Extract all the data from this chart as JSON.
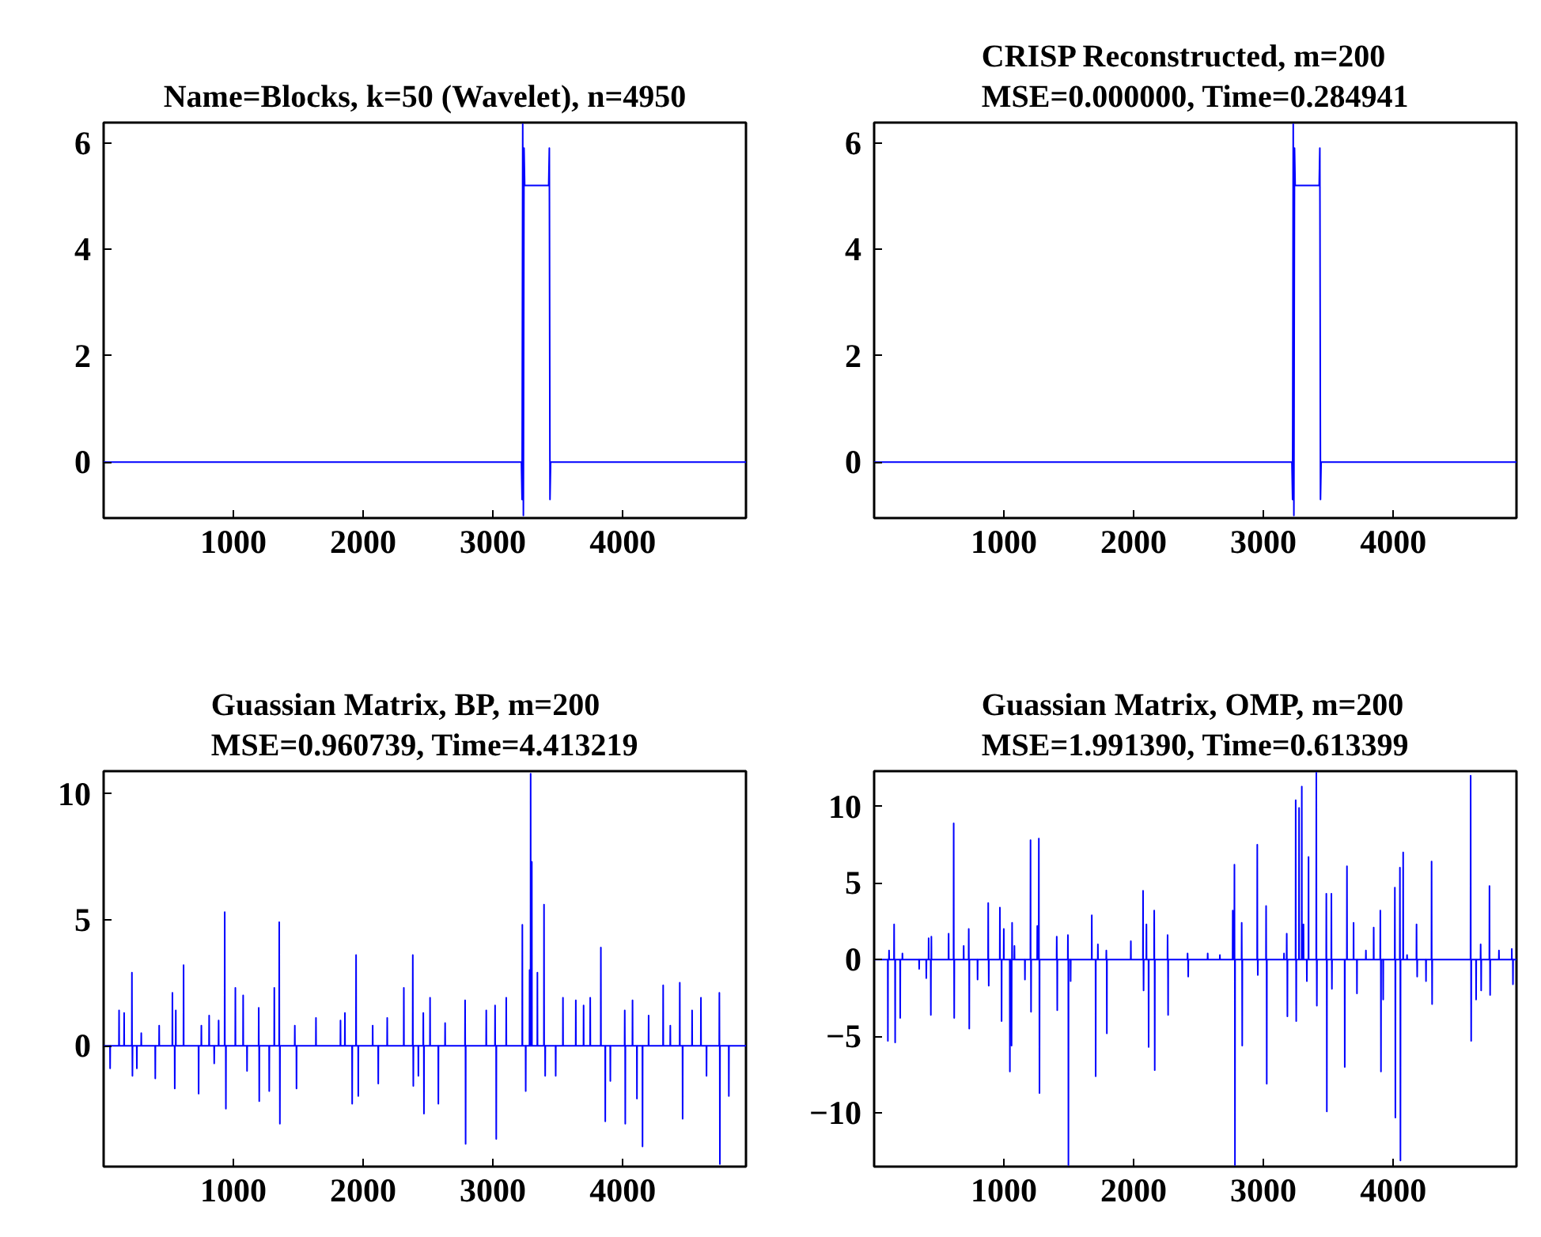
{
  "chart_data": [
    {
      "type": "line",
      "title": "Name=Blocks, k=50 (Wavelet), n=4950",
      "color": "#0000ff",
      "xlim": [
        1,
        4950
      ],
      "ylim": [
        -1.05,
        6.38
      ],
      "xticks": [
        1000,
        2000,
        3000,
        4000
      ],
      "yticks": [
        0,
        2,
        4,
        6
      ],
      "x": [
        1,
        3220,
        3225,
        3230,
        3235,
        3240,
        3245,
        3430,
        3435,
        3440,
        3445,
        4950
      ],
      "values": [
        0,
        0,
        -0.7,
        6.35,
        -1.0,
        5.9,
        5.2,
        5.2,
        5.9,
        -0.7,
        0,
        0
      ]
    },
    {
      "type": "line",
      "title": "CRISP Reconstructed, m=200",
      "subtitle": "MSE=0.000000, Time=0.284941",
      "color": "#0000ff",
      "xlim": [
        1,
        4950
      ],
      "ylim": [
        -1.05,
        6.38
      ],
      "xticks": [
        1000,
        2000,
        3000,
        4000
      ],
      "yticks": [
        0,
        2,
        4,
        6
      ],
      "x": [
        1,
        3220,
        3225,
        3230,
        3235,
        3240,
        3245,
        3430,
        3435,
        3440,
        3445,
        4950
      ],
      "values": [
        0,
        0,
        -0.7,
        6.35,
        -1.0,
        5.9,
        5.2,
        5.2,
        5.9,
        -0.7,
        0,
        0
      ]
    },
    {
      "type": "line",
      "title": "Guassian Matrix, BP, m=200",
      "subtitle": "MSE=0.960739, Time=4.413219",
      "color": "#0000ff",
      "xlim": [
        1,
        4950
      ],
      "ylim": [
        -4.8,
        10.9
      ],
      "xticks": [
        1000,
        2000,
        3000,
        4000
      ],
      "yticks": [
        0,
        5,
        10
      ],
      "x": [
        1,
        50,
        51,
        52,
        119,
        120,
        121,
        158,
        159,
        160,
        218,
        219,
        220,
        222,
        223,
        224,
        256,
        257,
        258,
        290,
        291,
        292,
        398,
        399,
        400,
        428,
        429,
        430,
        530,
        531,
        532,
        548,
        549,
        550,
        556,
        557,
        558,
        616,
        617,
        618,
        732,
        733,
        734,
        753,
        754,
        755,
        813,
        814,
        815,
        852,
        853,
        854,
        886,
        887,
        888,
        933,
        934,
        935,
        942,
        943,
        944,
        1015,
        1016,
        1017,
        1075,
        1076,
        1077,
        1105,
        1106,
        1107,
        1195,
        1196,
        1197,
        1199,
        1200,
        1201,
        1276,
        1277,
        1278,
        1315,
        1316,
        1317,
        1353,
        1354,
        1355,
        1358,
        1359,
        1360,
        1473,
        1474,
        1475,
        1486,
        1487,
        1488,
        1636,
        1637,
        1638,
        1825,
        1826,
        1827,
        1859,
        1860,
        1861,
        1915,
        1916,
        1917,
        1945,
        1946,
        1947,
        1962,
        1963,
        1964,
        2073,
        2074,
        2075,
        2116,
        2117,
        2118,
        2185,
        2186,
        2187,
        2313,
        2314,
        2315,
        2382,
        2383,
        2384,
        2386,
        2387,
        2388,
        2425,
        2426,
        2427,
        2463,
        2464,
        2465,
        2468,
        2469,
        2470,
        2515,
        2516,
        2517,
        2579,
        2580,
        2581,
        2631,
        2632,
        2633,
        2785,
        2786,
        2787,
        2789,
        2790,
        2791,
        2948,
        2949,
        2950,
        3016,
        3017,
        3018,
        3025,
        3026,
        3027,
        3102,
        3103,
        3104,
        3226,
        3227,
        3228,
        3252,
        3253,
        3254,
        3282,
        3283,
        3284,
        3290,
        3291,
        3292,
        3299,
        3300,
        3301,
        3342,
        3343,
        3344,
        3393,
        3394,
        3395,
        3402,
        3403,
        3404,
        3483,
        3484,
        3485,
        3539,
        3540,
        3541,
        3638,
        3639,
        3640,
        3698,
        3699,
        3700,
        3749,
        3750,
        3751,
        3831,
        3832,
        3833,
        3865,
        3866,
        3867,
        3904,
        3905,
        3906,
        4015,
        4016,
        4017,
        4019,
        4020,
        4021,
        4075,
        4076,
        4077,
        4109,
        4110,
        4111,
        4152,
        4153,
        4154,
        4199,
        4200,
        4201,
        4311,
        4312,
        4313,
        4366,
        4367,
        4368,
        4439,
        4440,
        4441,
        4461,
        4462,
        4463,
        4534,
        4535,
        4536,
        4602,
        4603,
        4604,
        4645,
        4646,
        4647,
        4744,
        4745,
        4746,
        4748,
        4749,
        4750,
        4817,
        4818,
        4819,
        4950
      ],
      "values": [
        0,
        0,
        -0.9,
        0,
        0,
        1.4,
        0,
        0,
        1.3,
        0,
        0,
        2.9,
        0,
        0,
        -1.2,
        0,
        0,
        -0.9,
        0,
        0,
        0.5,
        0,
        0,
        -1.3,
        0,
        0,
        0.8,
        0,
        0,
        2.1,
        0,
        0,
        -1.7,
        0,
        0,
        1.4,
        0,
        0,
        3.2,
        0,
        0,
        -1.9,
        0,
        0,
        0.8,
        0,
        0,
        1.2,
        0,
        0,
        -0.7,
        0,
        0,
        1.0,
        0,
        0,
        5.3,
        0,
        0,
        -2.5,
        0,
        0,
        2.3,
        0,
        0,
        2.0,
        0,
        0,
        -1.0,
        0,
        0,
        1.5,
        0,
        0,
        -2.2,
        0,
        0,
        -1.8,
        0,
        0,
        2.3,
        0,
        0,
        4.9,
        0,
        0,
        -3.1,
        0,
        0,
        0.8,
        0,
        0,
        -1.7,
        0,
        0,
        1.1,
        0,
        0,
        1.0,
        0,
        0,
        1.3,
        0,
        0,
        -2.3,
        0,
        0,
        3.6,
        0,
        0,
        -2.0,
        0,
        0,
        0.8,
        0,
        0,
        -1.5,
        0,
        0,
        1.1,
        0,
        0,
        2.3,
        0,
        0,
        3.6,
        0,
        0,
        -1.6,
        0,
        0,
        -1.2,
        0,
        0,
        1.3,
        0,
        0,
        -2.7,
        0,
        0,
        1.9,
        0,
        0,
        -2.3,
        0,
        0,
        0.9,
        0,
        0,
        1.8,
        0,
        0,
        -3.9,
        0,
        0,
        1.4,
        0,
        0,
        1.6,
        0,
        0,
        -3.7,
        0,
        0,
        1.9,
        0,
        0,
        4.8,
        0,
        0,
        -1.8,
        0,
        0,
        3.0,
        0,
        0,
        10.8,
        0,
        0,
        7.3,
        0,
        0,
        2.9,
        0,
        0,
        5.6,
        0,
        0,
        -1.2,
        0,
        0,
        -1.2,
        0,
        0,
        1.9,
        0,
        0,
        1.8,
        0,
        0,
        1.6,
        0,
        0,
        1.9,
        0,
        0,
        3.9,
        0,
        0,
        -3.0,
        0,
        0,
        -1.4,
        0,
        0,
        1.4,
        0,
        0,
        -3.1,
        0,
        0,
        1.8,
        0,
        0,
        -2.1,
        0,
        0,
        -4.0,
        0,
        0,
        1.2,
        0,
        0,
        2.4,
        0,
        0,
        0.8,
        0,
        0,
        2.5,
        0,
        0,
        -2.9,
        0,
        0,
        1.4,
        0,
        0,
        1.9,
        0,
        0,
        -1.2,
        0,
        0,
        2.1,
        0,
        0,
        -4.7,
        0,
        0,
        -2.0,
        0,
        0
      ]
    },
    {
      "type": "line",
      "title": "Guassian Matrix, OMP, m=200",
      "subtitle": "MSE=1.991390, Time=0.613399",
      "color": "#0000ff",
      "xlim": [
        1,
        4950
      ],
      "ylim": [
        -13.5,
        12.3
      ],
      "xticks": [
        1000,
        2000,
        3000,
        4000
      ],
      "yticks": [
        {
          "value": -10,
          "label": "−10"
        },
        {
          "value": -5,
          "label": "−5"
        },
        0,
        5,
        10
      ],
      "x": [
        1,
        106,
        107,
        108,
        115,
        116,
        117,
        154,
        155,
        156,
        162,
        163,
        164,
        201,
        202,
        203,
        218,
        219,
        220,
        347,
        348,
        349,
        402,
        403,
        404,
        420,
        421,
        422,
        437,
        438,
        439,
        441,
        442,
        443,
        574,
        575,
        576,
        613,
        614,
        615,
        617,
        618,
        619,
        690,
        691,
        692,
        729,
        730,
        731,
        733,
        734,
        735,
        797,
        798,
        799,
        879,
        880,
        881,
        883,
        884,
        885,
        969,
        970,
        971,
        982,
        983,
        984,
        999,
        1000,
        1001,
        1046,
        1047,
        1048,
        1059,
        1060,
        1061,
        1063,
        1064,
        1065,
        1081,
        1082,
        1083,
        1162,
        1163,
        1164,
        1205,
        1206,
        1207,
        1209,
        1210,
        1211,
        1257,
        1258,
        1259,
        1269,
        1270,
        1271,
        1274,
        1275,
        1276,
        1407,
        1408,
        1409,
        1411,
        1412,
        1413,
        1493,
        1494,
        1495,
        1497,
        1498,
        1499,
        1514,
        1515,
        1516,
        1677,
        1678,
        1679,
        1707,
        1708,
        1709,
        1724,
        1725,
        1726,
        1789,
        1790,
        1791,
        1793,
        1794,
        1795,
        1978,
        1979,
        1980,
        2072,
        2073,
        2074,
        2076,
        2077,
        2078,
        2098,
        2099,
        2100,
        2115,
        2116,
        2117,
        2158,
        2159,
        2160,
        2162,
        2163,
        2164,
        2261,
        2262,
        2263,
        2265,
        2266,
        2267,
        2415,
        2416,
        2417,
        2420,
        2421,
        2422,
        2570,
        2571,
        2572,
        2664,
        2665,
        2666,
        2763,
        2764,
        2765,
        2776,
        2777,
        2778,
        2780,
        2781,
        2782,
        2832,
        2833,
        2834,
        2836,
        2837,
        2838,
        2952,
        2953,
        2954,
        2956,
        2957,
        2958,
        3020,
        3021,
        3022,
        3025,
        3026,
        3027,
        3158,
        3159,
        3160,
        3179,
        3180,
        3181,
        3184,
        3185,
        3186,
        3248,
        3249,
        3250,
        3252,
        3253,
        3254,
        3274,
        3275,
        3276,
        3295,
        3296,
        3297,
        3308,
        3309,
        3310,
        3334,
        3335,
        3336,
        3347,
        3348,
        3349,
        3407,
        3408,
        3409,
        3411,
        3412,
        3413,
        3484,
        3485,
        3486,
        3488,
        3489,
        3490,
        3523,
        3524,
        3525,
        3527,
        3528,
        3529,
        3626,
        3627,
        3628,
        3643,
        3644,
        3645,
        3694,
        3695,
        3696,
        3720,
        3721,
        3722,
        3789,
        3790,
        3791,
        3849,
        3850,
        3851,
        3900,
        3901,
        3902,
        3905,
        3906,
        3907,
        3922,
        3923,
        3924,
        4012,
        4013,
        4014,
        4016,
        4017,
        4018,
        4051,
        4052,
        4053,
        4055,
        4056,
        4057,
        4076,
        4077,
        4078,
        4106,
        4107,
        4108,
        4179,
        4180,
        4181,
        4184,
        4185,
        4186,
        4252,
        4253,
        4254,
        4295,
        4296,
        4297,
        4299,
        4300,
        4301,
        4596,
        4597,
        4598,
        4600,
        4601,
        4602,
        4638,
        4639,
        4640,
        4673,
        4674,
        4675,
        4677,
        4678,
        4679,
        4741,
        4742,
        4743,
        4746,
        4747,
        4748,
        4814,
        4815,
        4816,
        4913,
        4914,
        4915,
        4922,
        4923,
        4924,
        4950
      ],
      "values": [
        0,
        0,
        -5.3,
        0,
        0,
        0.6,
        0,
        0,
        2.3,
        0,
        0,
        -5.4,
        0,
        0,
        -3.8,
        0,
        0,
        0.4,
        0,
        0,
        -0.6,
        0,
        0,
        -1.2,
        0,
        0,
        1.4,
        0,
        0,
        -3.6,
        0,
        0,
        1.5,
        0,
        0,
        1.7,
        0,
        0,
        8.9,
        0,
        0,
        -3.8,
        0,
        0,
        0.9,
        0,
        0,
        2.0,
        0,
        0,
        -4.5,
        0,
        0,
        -1.3,
        0,
        0,
        3.7,
        0,
        0,
        -1.7,
        0,
        0,
        3.4,
        0,
        0,
        -4.0,
        0,
        0,
        2.0,
        0,
        0,
        -7.3,
        0,
        0,
        -5.6,
        0,
        0,
        2.4,
        0,
        0,
        0.9,
        0,
        0,
        -1.3,
        0,
        0,
        7.8,
        0,
        0,
        -3.4,
        0,
        0,
        2.2,
        0,
        0,
        7.9,
        0,
        0,
        -8.7,
        0,
        0,
        1.5,
        0,
        0,
        -3.3,
        0,
        0,
        1.6,
        0,
        0,
        -13.4,
        0,
        0,
        -1.4,
        0,
        0,
        2.9,
        0,
        0,
        -7.6,
        0,
        0,
        1.0,
        0,
        0,
        0.6,
        0,
        0,
        -4.8,
        0,
        0,
        1.2,
        0,
        0,
        4.5,
        0,
        0,
        -2.0,
        0,
        0,
        2.3,
        0,
        0,
        -5.7,
        0,
        0,
        3.2,
        0,
        0,
        -7.2,
        0,
        0,
        1.6,
        0,
        0,
        -3.6,
        0,
        0,
        0.4,
        0,
        0,
        -1.1,
        0,
        0,
        0.4,
        0,
        0,
        0.3,
        0,
        0,
        3.2,
        0,
        0,
        6.2,
        0,
        0,
        -13.4,
        0,
        0,
        2.4,
        0,
        0,
        -5.6,
        0,
        0,
        7.5,
        0,
        0,
        -1.0,
        0,
        0,
        3.5,
        0,
        0,
        -8.1,
        0,
        0,
        0.4,
        0,
        0,
        1.7,
        0,
        0,
        -3.7,
        0,
        0,
        10.4,
        0,
        0,
        -4.0,
        0,
        0,
        9.9,
        0,
        0,
        11.3,
        0,
        0,
        2.3,
        0,
        0,
        -1.4,
        0,
        0,
        6.7,
        0,
        0,
        12.2,
        0,
        0,
        -3.0,
        0,
        0,
        4.3,
        0,
        0,
        -9.9,
        0,
        0,
        4.3,
        0,
        0,
        -1.9,
        0,
        0,
        -7.0,
        0,
        0,
        6.1,
        0,
        0,
        2.4,
        0,
        0,
        -2.2,
        0,
        0,
        0.6,
        0,
        0,
        2.1,
        0,
        0,
        3.2,
        0,
        0,
        -7.3,
        0,
        0,
        -2.6,
        0,
        0,
        4.7,
        0,
        0,
        -10.3,
        0,
        0,
        6.0,
        0,
        0,
        -13.1,
        0,
        0,
        7.0,
        0,
        0,
        0.3,
        0,
        0,
        2.3,
        0,
        0,
        -1.1,
        0,
        0,
        -1.4,
        0,
        0,
        6.4,
        0,
        0,
        -2.9,
        0,
        0,
        12.0,
        0,
        0,
        -5.3,
        0,
        0,
        -2.6,
        0,
        0,
        1.0,
        0,
        0,
        -2.0,
        0,
        0,
        4.8,
        0,
        0,
        -2.3,
        0,
        0,
        0.6,
        0,
        0,
        0.7,
        0,
        0,
        -1.6,
        0,
        0
      ]
    }
  ]
}
